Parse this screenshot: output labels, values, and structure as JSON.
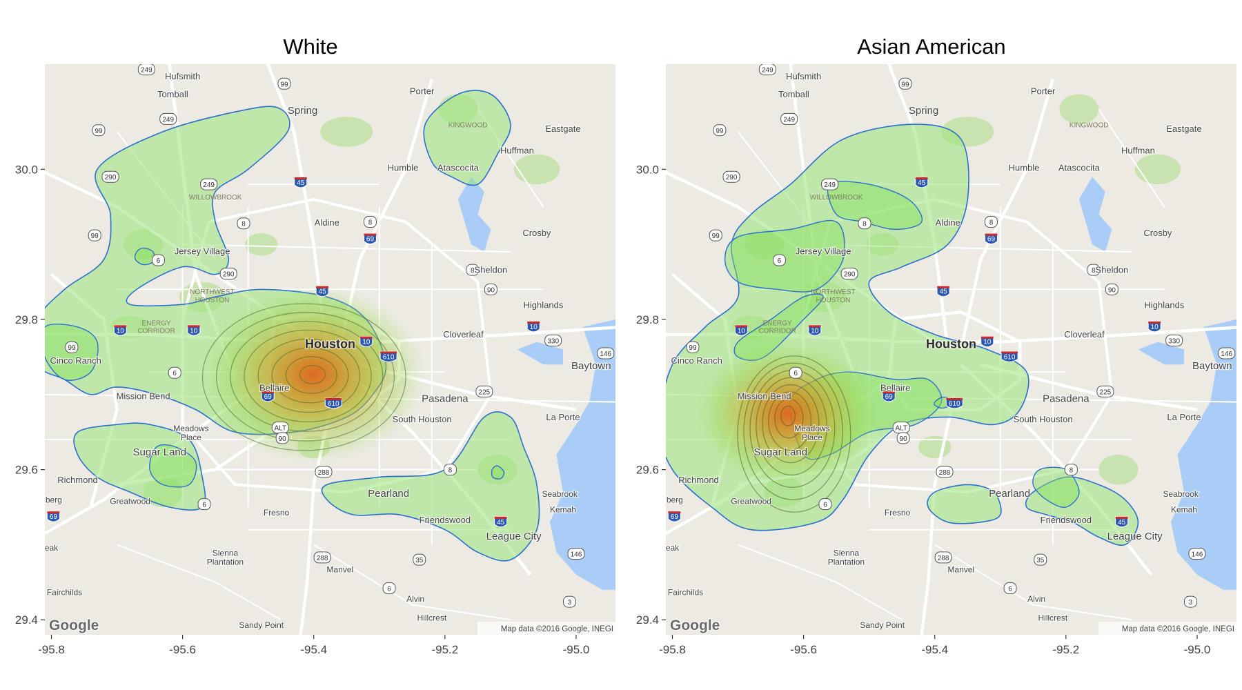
{
  "panels": [
    {
      "title": "White",
      "hotspot_lon": -95.4,
      "hotspot_lat": 29.727
    },
    {
      "title": "Asian American",
      "hotspot_lon": -95.625,
      "hotspot_lat": 29.675
    }
  ],
  "axes": {
    "x_ticks": [
      "-95.8",
      "-95.6",
      "-95.4",
      "-95.2",
      "-95.0"
    ],
    "y_ticks": [
      "30.0",
      "29.8",
      "29.6",
      "29.4"
    ],
    "xlim": [
      -95.81,
      -94.94
    ],
    "ylim": [
      29.38,
      30.14
    ]
  },
  "map": {
    "attribution": "Map data ©2016 Google, INEGI",
    "logo": "Google",
    "places": [
      {
        "name": "Hufsmith",
        "lon": -95.6,
        "lat": 30.12,
        "size": 13
      },
      {
        "name": "Tomball",
        "lon": -95.615,
        "lat": 30.096,
        "size": 13
      },
      {
        "name": "Porter",
        "lon": -95.235,
        "lat": 30.1,
        "size": 13
      },
      {
        "name": "Spring",
        "lon": -95.417,
        "lat": 30.074,
        "size": 15
      },
      {
        "name": "Eastgate",
        "lon": -95.02,
        "lat": 30.05,
        "size": 13
      },
      {
        "name": "Huffman",
        "lon": -95.09,
        "lat": 30.021,
        "size": 13
      },
      {
        "name": "Humble",
        "lon": -95.264,
        "lat": 29.998,
        "size": 13
      },
      {
        "name": "Atascocita",
        "lon": -95.18,
        "lat": 29.998,
        "size": 13
      },
      {
        "name": "Aldine",
        "lon": -95.38,
        "lat": 29.925,
        "size": 13
      },
      {
        "name": "Crosby",
        "lon": -95.06,
        "lat": 29.911,
        "size": 13
      },
      {
        "name": "Jersey Village",
        "lon": -95.57,
        "lat": 29.887,
        "size": 13
      },
      {
        "name": "Sheldon",
        "lon": -95.13,
        "lat": 29.862,
        "size": 13
      },
      {
        "name": "Highlands",
        "lon": -95.05,
        "lat": 29.815,
        "size": 13
      },
      {
        "name": "Cloverleaf",
        "lon": -95.172,
        "lat": 29.776,
        "size": 13
      },
      {
        "name": "Houston",
        "lon": -95.375,
        "lat": 29.762,
        "size": 18
      },
      {
        "name": "Cinco Ranch",
        "lon": -95.763,
        "lat": 29.741,
        "size": 13
      },
      {
        "name": "Baytown",
        "lon": -94.977,
        "lat": 29.734,
        "size": 15
      },
      {
        "name": "Bellaire",
        "lon": -95.46,
        "lat": 29.705,
        "size": 13
      },
      {
        "name": "Pasadena",
        "lon": -95.2,
        "lat": 29.69,
        "size": 15
      },
      {
        "name": "Mission Bend",
        "lon": -95.66,
        "lat": 29.694,
        "size": 13
      },
      {
        "name": "South Houston",
        "lon": -95.235,
        "lat": 29.663,
        "size": 13
      },
      {
        "name": "La Porte",
        "lon": -95.02,
        "lat": 29.666,
        "size": 13
      },
      {
        "name": "Meadows Place",
        "lon": -95.587,
        "lat": 29.651,
        "size": 12
      },
      {
        "name": "Sugar Land",
        "lon": -95.635,
        "lat": 29.619,
        "size": 15
      },
      {
        "name": "Richmond",
        "lon": -95.76,
        "lat": 29.582,
        "size": 13
      },
      {
        "name": "Pearland",
        "lon": -95.286,
        "lat": 29.564,
        "size": 15
      },
      {
        "name": "Seabrook",
        "lon": -95.025,
        "lat": 29.564,
        "size": 12
      },
      {
        "name": "Greatwood",
        "lon": -95.68,
        "lat": 29.554,
        "size": 12
      },
      {
        "name": "nberg",
        "lon": -95.8,
        "lat": 29.556,
        "size": 12
      },
      {
        "name": "Fresno",
        "lon": -95.457,
        "lat": 29.539,
        "size": 12
      },
      {
        "name": "Kemah",
        "lon": -95.02,
        "lat": 29.543,
        "size": 12
      },
      {
        "name": "Friendswood",
        "lon": -95.2,
        "lat": 29.529,
        "size": 13
      },
      {
        "name": "League City",
        "lon": -95.095,
        "lat": 29.507,
        "size": 15
      },
      {
        "name": "eak",
        "lon": -95.8,
        "lat": 29.492,
        "size": 12
      },
      {
        "name": "Sienna Plantation",
        "lon": -95.535,
        "lat": 29.485,
        "size": 12
      },
      {
        "name": "Manvel",
        "lon": -95.36,
        "lat": 29.463,
        "size": 12
      },
      {
        "name": "Fairchilds",
        "lon": -95.78,
        "lat": 29.433,
        "size": 12
      },
      {
        "name": "Alvin",
        "lon": -95.245,
        "lat": 29.424,
        "size": 12
      },
      {
        "name": "Hillcrest",
        "lon": -95.22,
        "lat": 29.399,
        "size": 12
      },
      {
        "name": "Sandy Point",
        "lon": -95.48,
        "lat": 29.389,
        "size": 12
      }
    ],
    "districts": [
      {
        "name": "KINGWOOD",
        "lon": -95.165,
        "lat": 30.056
      },
      {
        "name": "WILLOWBROOK",
        "lon": -95.55,
        "lat": 29.96
      },
      {
        "name": "NORTHWEST",
        "lon": -95.555,
        "lat": 29.834
      },
      {
        "name": "HOUSTON",
        "lon": -95.555,
        "lat": 29.823
      },
      {
        "name": "ENERGY",
        "lon": -95.64,
        "lat": 29.792
      },
      {
        "name": "CORRIDOR",
        "lon": -95.64,
        "lat": 29.782
      }
    ],
    "shields": [
      {
        "label": "249",
        "lon": -95.655,
        "lat": 30.133,
        "kind": "state"
      },
      {
        "label": "99",
        "lon": -95.445,
        "lat": 30.114,
        "kind": "state"
      },
      {
        "label": "249",
        "lon": -95.622,
        "lat": 30.067,
        "kind": "state"
      },
      {
        "label": "99",
        "lon": -95.728,
        "lat": 30.052,
        "kind": "state"
      },
      {
        "label": "290",
        "lon": -95.71,
        "lat": 29.99,
        "kind": "state"
      },
      {
        "label": "249",
        "lon": -95.56,
        "lat": 29.98,
        "kind": "state"
      },
      {
        "label": "45",
        "lon": -95.42,
        "lat": 29.982,
        "kind": "interstate"
      },
      {
        "label": "8",
        "lon": -95.507,
        "lat": 29.928,
        "kind": "state"
      },
      {
        "label": "8",
        "lon": -95.314,
        "lat": 29.93,
        "kind": "state"
      },
      {
        "label": "69",
        "lon": -95.314,
        "lat": 29.907,
        "kind": "interstate"
      },
      {
        "label": "99",
        "lon": -95.734,
        "lat": 29.912,
        "kind": "state"
      },
      {
        "label": "6",
        "lon": -95.637,
        "lat": 29.879,
        "kind": "state"
      },
      {
        "label": "290",
        "lon": -95.53,
        "lat": 29.861,
        "kind": "state"
      },
      {
        "label": "8",
        "lon": -95.158,
        "lat": 29.866,
        "kind": "state"
      },
      {
        "label": "90",
        "lon": -95.13,
        "lat": 29.84,
        "kind": "state"
      },
      {
        "label": "45",
        "lon": -95.387,
        "lat": 29.837,
        "kind": "interstate"
      },
      {
        "label": "10",
        "lon": -95.065,
        "lat": 29.79,
        "kind": "interstate"
      },
      {
        "label": "10",
        "lon": -95.695,
        "lat": 29.785,
        "kind": "interstate"
      },
      {
        "label": "10",
        "lon": -95.583,
        "lat": 29.785,
        "kind": "interstate"
      },
      {
        "label": "10",
        "lon": -95.32,
        "lat": 29.77,
        "kind": "interstate"
      },
      {
        "label": "330",
        "lon": -95.035,
        "lat": 29.772,
        "kind": "state"
      },
      {
        "label": "99",
        "lon": -95.769,
        "lat": 29.763,
        "kind": "state"
      },
      {
        "label": "610",
        "lon": -95.286,
        "lat": 29.75,
        "kind": "interstate"
      },
      {
        "label": "146",
        "lon": -94.955,
        "lat": 29.755,
        "kind": "state"
      },
      {
        "label": "6",
        "lon": -95.612,
        "lat": 29.729,
        "kind": "state"
      },
      {
        "label": "225",
        "lon": -95.14,
        "lat": 29.704,
        "kind": "state"
      },
      {
        "label": "69",
        "lon": -95.47,
        "lat": 29.697,
        "kind": "interstate"
      },
      {
        "label": "610",
        "lon": -95.37,
        "lat": 29.688,
        "kind": "interstate"
      },
      {
        "label": "ALT",
        "lon": -95.451,
        "lat": 29.656,
        "kind": "state"
      },
      {
        "label": "90",
        "lon": -95.448,
        "lat": 29.642,
        "kind": "state"
      },
      {
        "label": "8",
        "lon": -95.192,
        "lat": 29.6,
        "kind": "state"
      },
      {
        "label": "288",
        "lon": -95.385,
        "lat": 29.597,
        "kind": "state"
      },
      {
        "label": "6",
        "lon": -95.567,
        "lat": 29.554,
        "kind": "state"
      },
      {
        "label": "69",
        "lon": -95.797,
        "lat": 29.537,
        "kind": "interstate"
      },
      {
        "label": "45",
        "lon": -95.115,
        "lat": 29.53,
        "kind": "interstate"
      },
      {
        "label": "288",
        "lon": -95.387,
        "lat": 29.483,
        "kind": "state"
      },
      {
        "label": "35",
        "lon": -95.239,
        "lat": 29.48,
        "kind": "state"
      },
      {
        "label": "146",
        "lon": -95.0,
        "lat": 29.488,
        "kind": "state"
      },
      {
        "label": "6",
        "lon": -95.285,
        "lat": 29.442,
        "kind": "state"
      },
      {
        "label": "3",
        "lon": -95.01,
        "lat": 29.424,
        "kind": "state"
      }
    ]
  }
}
